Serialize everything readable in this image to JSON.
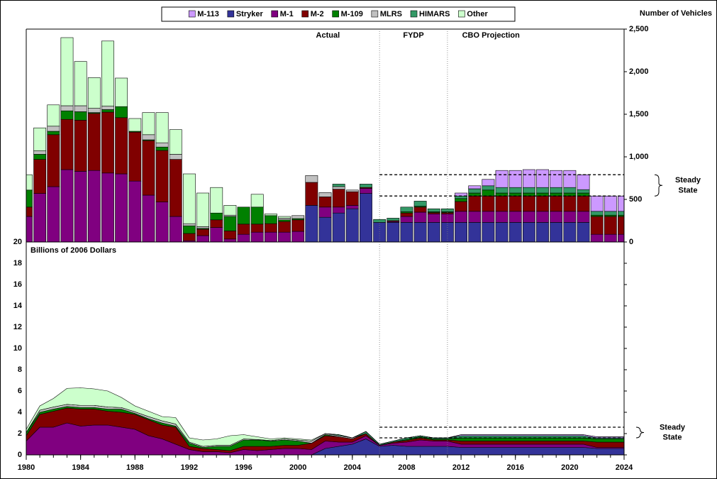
{
  "chart_data": [
    {
      "type": "bar",
      "y_label": "Number of Vehicles",
      "x": [
        1980,
        1981,
        1982,
        1983,
        1984,
        1985,
        1986,
        1987,
        1988,
        1989,
        1990,
        1991,
        1992,
        1993,
        1994,
        1995,
        1996,
        1997,
        1998,
        1999,
        2000,
        2001,
        2002,
        2003,
        2004,
        2005,
        2006,
        2007,
        2008,
        2009,
        2010,
        2011,
        2012,
        2013,
        2014,
        2015,
        2016,
        2017,
        2018,
        2019,
        2020,
        2021,
        2022,
        2023,
        2024
      ],
      "xlim": [
        1980,
        2024
      ],
      "ylim": [
        0,
        2500
      ],
      "yticks": [
        0,
        500,
        {
          "value": 1000,
          "label": "1,000"
        },
        {
          "value": 1500,
          "label": "1,500"
        },
        {
          "value": 2000,
          "label": "2,000"
        },
        {
          "value": 2500,
          "label": "2,500"
        }
      ],
      "periods": [
        "Actual",
        "FYDP",
        "CBO Projection"
      ],
      "dividers": [
        2006,
        2011
      ],
      "steady_state": {
        "label": "Steady State",
        "from": 2006,
        "values": [
          790,
          540
        ]
      },
      "series": [
        {
          "name": "M-113",
          "color": "#cc99ff",
          "values": [
            0,
            0,
            0,
            0,
            0,
            0,
            0,
            0,
            0,
            0,
            0,
            0,
            0,
            0,
            0,
            0,
            0,
            0,
            0,
            0,
            0,
            0,
            0,
            0,
            0,
            0,
            0,
            0,
            0,
            0,
            0,
            0,
            35,
            35,
            75,
            200,
            200,
            210,
            210,
            200,
            200,
            175,
            180,
            180,
            180
          ]
        },
        {
          "name": "Stryker",
          "color": "#333399",
          "values": [
            0,
            0,
            0,
            0,
            0,
            0,
            0,
            0,
            0,
            0,
            0,
            0,
            0,
            0,
            0,
            0,
            0,
            0,
            0,
            0,
            0,
            430,
            290,
            340,
            390,
            570,
            230,
            230,
            230,
            230,
            230,
            230,
            230,
            230,
            230,
            230,
            230,
            230,
            230,
            230,
            230,
            230,
            0,
            0,
            0
          ]
        },
        {
          "name": "M-1",
          "color": "#800080",
          "values": [
            300,
            570,
            650,
            850,
            830,
            840,
            810,
            800,
            715,
            550,
            470,
            300,
            15,
            75,
            170,
            35,
            90,
            115,
            115,
            115,
            125,
            0,
            120,
            70,
            40,
            60,
            0,
            10,
            70,
            120,
            100,
            100,
            130,
            130,
            130,
            130,
            130,
            130,
            130,
            130,
            130,
            130,
            90,
            90,
            90
          ]
        },
        {
          "name": "M-2",
          "color": "#800000",
          "values": [
            110,
            400,
            610,
            590,
            600,
            670,
            715,
            660,
            575,
            640,
            605,
            670,
            85,
            75,
            90,
            95,
            120,
            95,
            100,
            125,
            135,
            270,
            120,
            210,
            160,
            10,
            0,
            10,
            40,
            60,
            15,
            15,
            115,
            180,
            180,
            180,
            180,
            180,
            180,
            180,
            180,
            180,
            210,
            210,
            210
          ]
        },
        {
          "name": "M-109",
          "color": "#008000",
          "values": [
            200,
            60,
            40,
            100,
            100,
            10,
            30,
            130,
            10,
            10,
            40,
            0,
            90,
            10,
            80,
            170,
            200,
            200,
            95,
            20,
            15,
            0,
            0,
            0,
            0,
            0,
            0,
            0,
            15,
            10,
            10,
            10,
            35,
            35,
            70,
            35,
            35,
            35,
            35,
            35,
            35,
            35,
            15,
            15,
            15
          ]
        },
        {
          "name": "MLRS",
          "color": "#c0c0c0",
          "values": [
            0,
            40,
            60,
            60,
            70,
            50,
            40,
            0,
            0,
            60,
            50,
            60,
            25,
            20,
            0,
            15,
            0,
            0,
            0,
            20,
            35,
            80,
            50,
            30,
            20,
            0,
            0,
            0,
            0,
            0,
            0,
            0,
            0,
            0,
            0,
            0,
            0,
            0,
            0,
            0,
            0,
            0,
            0,
            0,
            0
          ]
        },
        {
          "name": "HIMARS",
          "color": "#339966",
          "values": [
            0,
            0,
            0,
            0,
            0,
            0,
            0,
            0,
            0,
            0,
            0,
            0,
            0,
            0,
            0,
            0,
            0,
            0,
            0,
            0,
            0,
            0,
            0,
            30,
            0,
            40,
            35,
            30,
            55,
            60,
            35,
            35,
            30,
            50,
            50,
            65,
            65,
            65,
            65,
            65,
            65,
            40,
            45,
            45,
            45
          ]
        },
        {
          "name": "Other",
          "color": "#ccffcc",
          "values": [
            180,
            270,
            250,
            800,
            520,
            360,
            765,
            335,
            150,
            260,
            355,
            290,
            585,
            395,
            300,
            115,
            0,
            150,
            20,
            20,
            0,
            0,
            0,
            0,
            0,
            0,
            0,
            0,
            0,
            0,
            0,
            0,
            0,
            0,
            0,
            0,
            0,
            0,
            0,
            0,
            0,
            0,
            0,
            0,
            0
          ]
        }
      ]
    },
    {
      "type": "area",
      "y_label": "Billions of 2006 Dollars",
      "x": [
        1980,
        1981,
        1982,
        1983,
        1984,
        1985,
        1986,
        1987,
        1988,
        1989,
        1990,
        1991,
        1992,
        1993,
        1994,
        1995,
        1996,
        1997,
        1998,
        1999,
        2000,
        2001,
        2002,
        2003,
        2004,
        2005,
        2006,
        2007,
        2008,
        2009,
        2010,
        2011,
        2012,
        2013,
        2014,
        2015,
        2016,
        2017,
        2018,
        2019,
        2020,
        2021,
        2022,
        2023,
        2024
      ],
      "xlim": [
        1980,
        2024
      ],
      "xticks": [
        1980,
        1984,
        1988,
        1992,
        1996,
        2000,
        2004,
        2008,
        2012,
        2016,
        2020,
        2024
      ],
      "ylim": [
        0,
        20
      ],
      "yticks": [
        0,
        2,
        4,
        6,
        8,
        10,
        12,
        14,
        16,
        18,
        20
      ],
      "dividers": [
        2006,
        2011
      ],
      "steady_state": {
        "label": "Steady State",
        "from": 2006,
        "values": [
          2.6,
          1.6
        ]
      },
      "series": [
        {
          "color": "#cc99ff",
          "values": [
            0,
            0,
            0,
            0,
            0,
            0,
            0,
            0,
            0,
            0,
            0,
            0,
            0,
            0,
            0,
            0,
            0,
            0,
            0,
            0,
            0,
            0,
            0,
            0,
            0,
            0,
            0,
            0,
            0,
            0,
            0,
            0,
            0.1,
            0.1,
            0.1,
            0.1,
            0.1,
            0.1,
            0.1,
            0.1,
            0.1,
            0.1,
            0.1,
            0.1,
            0.1
          ]
        },
        {
          "color": "#333399",
          "values": [
            0,
            0,
            0,
            0,
            0,
            0,
            0,
            0,
            0,
            0,
            0,
            0,
            0,
            0,
            0,
            0,
            0,
            0,
            0,
            0,
            0,
            0,
            0.6,
            0.8,
            1.0,
            1.5,
            0.8,
            0.9,
            0.8,
            0.8,
            0.8,
            0.8,
            0.7,
            0.7,
            0.7,
            0.7,
            0.7,
            0.7,
            0.7,
            0.7,
            0.7,
            0.7,
            0.6,
            0.6,
            0.6
          ]
        },
        {
          "color": "#800080",
          "values": [
            1.3,
            2.6,
            2.6,
            3.0,
            2.7,
            2.8,
            2.8,
            2.6,
            2.4,
            1.8,
            1.5,
            1.0,
            0.5,
            0.3,
            0.3,
            0.2,
            0.5,
            0.4,
            0.5,
            0.6,
            0.6,
            0.5,
            0.7,
            0.4,
            0.2,
            0.3,
            0.1,
            0.2,
            0.4,
            0.6,
            0.5,
            0.5,
            0.3,
            0.3,
            0.3,
            0.3,
            0.3,
            0.3,
            0.3,
            0.3,
            0.3,
            0.3,
            0.1,
            0.1,
            0.1
          ]
        },
        {
          "color": "#800000",
          "values": [
            0.5,
            1.2,
            1.5,
            1.4,
            1.6,
            1.5,
            1.3,
            1.4,
            1.4,
            1.5,
            1.3,
            1.6,
            0.3,
            0.3,
            0.2,
            0.2,
            0.3,
            0.4,
            0.3,
            0.3,
            0.3,
            0.6,
            0.5,
            0.5,
            0.3,
            0.2,
            0,
            0.1,
            0.15,
            0.2,
            0.1,
            0.1,
            0.3,
            0.3,
            0.3,
            0.3,
            0.3,
            0.3,
            0.3,
            0.3,
            0.3,
            0.3,
            0.5,
            0.5,
            0.5
          ]
        },
        {
          "color": "#008000",
          "values": [
            0.3,
            0.2,
            0.2,
            0.15,
            0.15,
            0.15,
            0.2,
            0.3,
            0.1,
            0.1,
            0.2,
            0.1,
            0.3,
            0.1,
            0.3,
            0.4,
            0.6,
            0.6,
            0.5,
            0.5,
            0.4,
            0,
            0.1,
            0,
            0,
            0,
            0,
            0,
            0.1,
            0.1,
            0.1,
            0.1,
            0.3,
            0.3,
            0.3,
            0.3,
            0.3,
            0.3,
            0.3,
            0.3,
            0.3,
            0.3,
            0.3,
            0.3,
            0.3
          ]
        },
        {
          "color": "#c0c0c0",
          "values": [
            0,
            0.2,
            0.2,
            0.2,
            0.2,
            0.2,
            0.2,
            0.15,
            0.15,
            0.2,
            0.2,
            0.2,
            0.1,
            0.1,
            0.1,
            0.1,
            0.1,
            0.05,
            0.05,
            0.1,
            0.1,
            0.2,
            0.1,
            0.1,
            0.1,
            0,
            0,
            0,
            0,
            0,
            0,
            0,
            0,
            0,
            0,
            0,
            0,
            0,
            0,
            0,
            0,
            0,
            0,
            0,
            0
          ]
        },
        {
          "color": "#339966",
          "values": [
            0,
            0,
            0,
            0,
            0,
            0,
            0,
            0,
            0,
            0,
            0,
            0,
            0,
            0,
            0,
            0,
            0,
            0,
            0,
            0,
            0,
            0,
            0,
            0.1,
            0,
            0.2,
            0.1,
            0.1,
            0.15,
            0.1,
            0.1,
            0.1,
            0.2,
            0.2,
            0.2,
            0.2,
            0.2,
            0.2,
            0.2,
            0.2,
            0.2,
            0.2,
            0.1,
            0.1,
            0.1
          ]
        },
        {
          "color": "#ccffcc",
          "values": [
            0.3,
            0.4,
            0.8,
            1.5,
            1.65,
            1.55,
            1.5,
            0.95,
            0.55,
            0.5,
            0.4,
            0.6,
            0.4,
            0.6,
            0.6,
            0.9,
            0.4,
            0.25,
            0.15,
            0.1,
            0.1,
            0.1,
            0,
            0,
            0,
            0,
            0,
            0,
            0,
            0,
            0,
            0,
            0,
            0,
            0,
            0,
            0,
            0,
            0,
            0,
            0,
            0,
            0,
            0,
            0
          ]
        }
      ]
    }
  ]
}
